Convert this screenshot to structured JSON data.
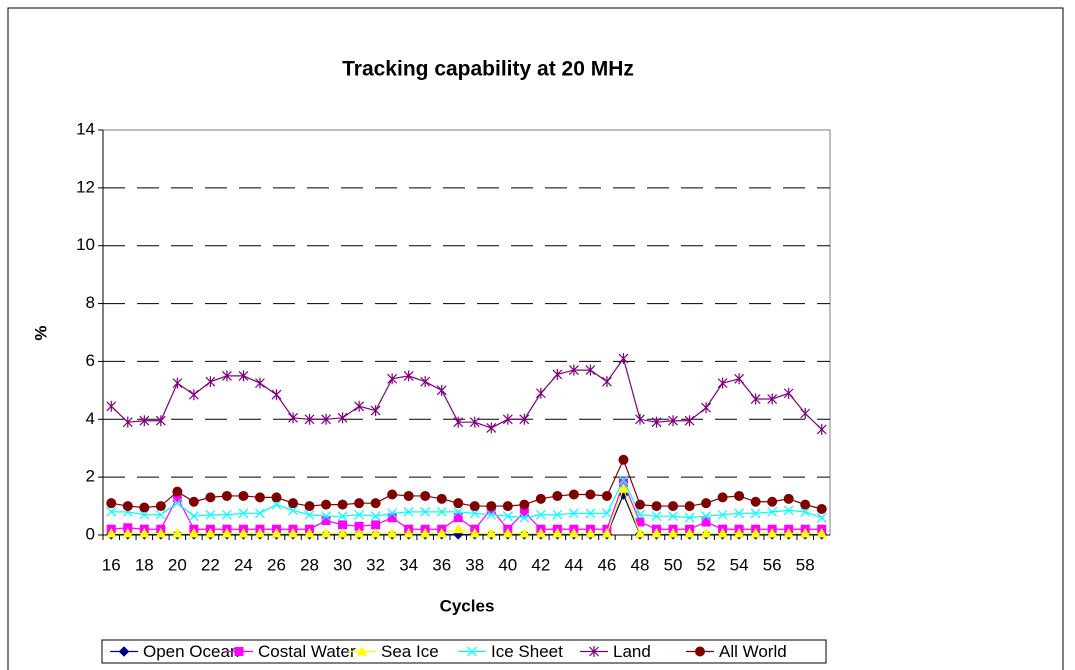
{
  "chart_data": {
    "type": "line",
    "title": "Tracking capability at 20 MHz",
    "x_label": "Cycles",
    "y_label": "%",
    "categories": [
      16,
      null,
      18,
      null,
      20,
      null,
      22,
      null,
      24,
      null,
      26,
      null,
      28,
      null,
      30,
      null,
      32,
      null,
      34,
      null,
      36,
      null,
      38,
      null,
      40,
      null,
      42,
      null,
      44,
      null,
      46,
      null,
      48,
      null,
      50,
      null,
      52,
      null,
      54,
      null,
      56,
      null,
      58,
      null
    ],
    "series": [
      {
        "name": "Open Ocean",
        "color": "#000080",
        "marker": "diamond",
        "values": [
          0.02,
          0.02,
          0.02,
          0.02,
          0.02,
          0.02,
          0.02,
          0.02,
          0.02,
          0.02,
          0.02,
          0.02,
          0.02,
          0.02,
          0.02,
          0.02,
          0.02,
          0.02,
          0.02,
          0.02,
          0.02,
          0.02,
          0.02,
          0.02,
          0.02,
          0.02,
          0.02,
          0.02,
          0.02,
          0.02,
          0.02,
          1.4,
          0.02,
          0.02,
          0.02,
          0.02,
          0.02,
          0.02,
          0.02,
          0.02,
          0.02,
          0.02,
          0.02,
          0.02
        ]
      },
      {
        "name": "Costal Water",
        "color": "#ff00ff",
        "marker": "square",
        "values": [
          0.2,
          0.25,
          0.2,
          0.2,
          1.3,
          0.2,
          0.2,
          0.2,
          0.2,
          0.2,
          0.2,
          0.2,
          0.2,
          0.5,
          0.35,
          0.3,
          0.35,
          0.6,
          0.2,
          0.2,
          0.2,
          0.6,
          0.2,
          0.9,
          0.2,
          0.8,
          0.2,
          0.2,
          0.2,
          0.2,
          0.2,
          1.8,
          0.45,
          0.2,
          0.2,
          0.2,
          0.45,
          0.2,
          0.2,
          0.2,
          0.2,
          0.2,
          0.2,
          0.2
        ]
      },
      {
        "name": "Sea Ice",
        "color": "#ffff00",
        "marker": "triangle",
        "values": [
          0.05,
          0.05,
          0.05,
          0.05,
          0.05,
          0.05,
          0.05,
          0.05,
          0.05,
          0.05,
          0.05,
          0.05,
          0.05,
          0.05,
          0.05,
          0.05,
          0.05,
          0.05,
          0.05,
          0.05,
          0.05,
          0.2,
          0.05,
          0.05,
          0.05,
          0.05,
          0.05,
          0.05,
          0.05,
          0.05,
          0.05,
          1.6,
          0.05,
          0.05,
          0.05,
          0.05,
          0.05,
          0.05,
          0.05,
          0.05,
          0.05,
          0.05,
          0.05,
          0.05
        ]
      },
      {
        "name": "Ice Sheet",
        "color": "#00ffff",
        "marker": "x",
        "values": [
          0.8,
          0.8,
          0.7,
          0.7,
          1.1,
          0.65,
          0.7,
          0.7,
          0.75,
          0.75,
          1.05,
          0.85,
          0.7,
          0.65,
          0.65,
          0.7,
          0.65,
          0.75,
          0.8,
          0.8,
          0.8,
          0.8,
          0.75,
          0.7,
          0.65,
          0.6,
          0.7,
          0.7,
          0.75,
          0.75,
          0.75,
          1.9,
          0.7,
          0.65,
          0.65,
          0.6,
          0.65,
          0.7,
          0.75,
          0.75,
          0.8,
          0.85,
          0.8,
          0.6
        ]
      },
      {
        "name": "Land",
        "color": "#800080",
        "marker": "star",
        "values": [
          4.45,
          3.9,
          3.95,
          3.95,
          5.25,
          4.85,
          5.3,
          5.5,
          5.5,
          5.25,
          4.85,
          4.05,
          4.0,
          4.0,
          4.05,
          4.45,
          4.3,
          5.4,
          5.5,
          5.3,
          5.0,
          3.9,
          3.9,
          3.7,
          4.0,
          4.0,
          4.9,
          5.55,
          5.7,
          5.7,
          5.3,
          6.1,
          4.0,
          3.9,
          3.95,
          3.95,
          4.4,
          5.25,
          5.4,
          4.7,
          4.7,
          4.9,
          4.2,
          3.65
        ]
      },
      {
        "name": "All World",
        "color": "#800000",
        "marker": "circle",
        "values": [
          1.1,
          1.0,
          0.95,
          1.0,
          1.5,
          1.15,
          1.3,
          1.35,
          1.35,
          1.3,
          1.3,
          1.1,
          1.0,
          1.05,
          1.05,
          1.1,
          1.1,
          1.4,
          1.35,
          1.35,
          1.25,
          1.1,
          1.0,
          1.0,
          1.0,
          1.05,
          1.25,
          1.35,
          1.4,
          1.4,
          1.35,
          2.6,
          1.05,
          1.0,
          1.0,
          1.0,
          1.1,
          1.3,
          1.35,
          1.15,
          1.15,
          1.25,
          1.05,
          0.9
        ]
      }
    ],
    "ylim": [
      0,
      14
    ],
    "yticks": [
      0,
      2,
      4,
      6,
      8,
      10,
      12,
      14
    ],
    "grid": true,
    "legend": "bottom"
  }
}
